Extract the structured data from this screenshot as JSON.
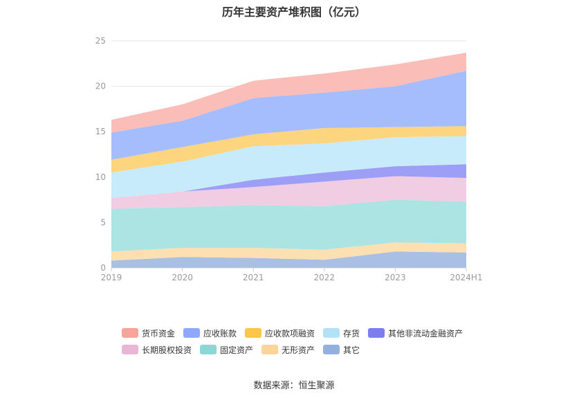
{
  "chart_data": {
    "type": "area",
    "stacked": true,
    "title": "历年主要资产堆积图（亿元）",
    "categories": [
      "2019",
      "2020",
      "2021",
      "2022",
      "2023",
      "2024H1"
    ],
    "ylim": [
      0,
      25
    ],
    "yticks": [
      0,
      5,
      10,
      15,
      20,
      25
    ],
    "grid": true,
    "legend_position": "bottom",
    "series": [
      {
        "name": "其它",
        "color": "#a9bfe3",
        "values": [
          0.8,
          1.2,
          1.1,
          0.9,
          1.8,
          1.7
        ]
      },
      {
        "name": "无形资产",
        "color": "#fde0b1",
        "values": [
          1.0,
          1.0,
          1.1,
          1.1,
          1.0,
          1.0
        ]
      },
      {
        "name": "固定资产",
        "color": "#ace3e3",
        "values": [
          4.7,
          4.5,
          4.7,
          4.8,
          4.7,
          4.6
        ]
      },
      {
        "name": "长期股权投资",
        "color": "#f0cde3",
        "values": [
          1.2,
          1.7,
          2.0,
          2.7,
          2.6,
          2.6
        ]
      },
      {
        "name": "其他非流动金融资产",
        "color": "#9d9ef6",
        "values": [
          0.0,
          0.0,
          0.8,
          1.0,
          1.1,
          1.5
        ]
      },
      {
        "name": "存货",
        "color": "#c7ebfb",
        "values": [
          2.8,
          3.3,
          3.7,
          3.2,
          3.2,
          3.1
        ]
      },
      {
        "name": "应收款项融资",
        "color": "#fdd57e",
        "values": [
          1.4,
          1.6,
          1.3,
          1.7,
          1.1,
          1.1
        ]
      },
      {
        "name": "应收账款",
        "color": "#a6bdfd",
        "values": [
          3.0,
          2.9,
          4.0,
          3.9,
          4.5,
          6.1
        ]
      },
      {
        "name": "货币资金",
        "color": "#fbbdb8",
        "values": [
          1.4,
          1.8,
          1.9,
          2.1,
          2.4,
          2.0
        ]
      }
    ]
  },
  "legend": {
    "rows": [
      [
        {
          "label": "货币资金",
          "color": "#f8a39b"
        },
        {
          "label": "应收账款",
          "color": "#8fa8fb"
        },
        {
          "label": "应收款项融资",
          "color": "#fcc646"
        },
        {
          "label": "存货",
          "color": "#b3e2f7"
        },
        {
          "label": "其他非流动金融资产",
          "color": "#7c7ef0"
        }
      ],
      [
        {
          "label": "长期股权投资",
          "color": "#e9b7d6"
        },
        {
          "label": "固定资产",
          "color": "#8ad8d6"
        },
        {
          "label": "无形资产",
          "color": "#fdd49a"
        },
        {
          "label": "其它",
          "color": "#94b0dc"
        }
      ]
    ]
  },
  "source": "数据来源：恒生聚源"
}
